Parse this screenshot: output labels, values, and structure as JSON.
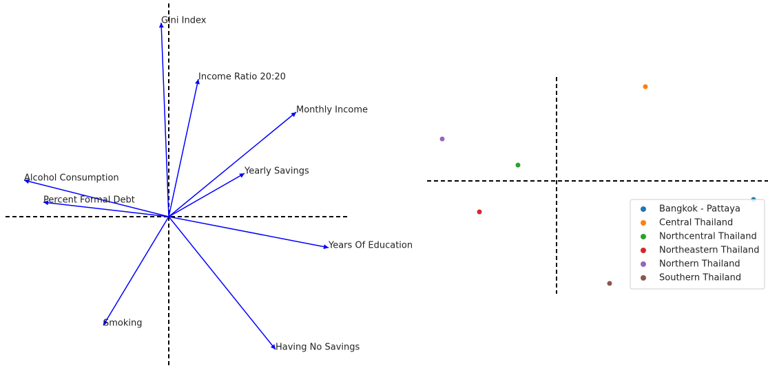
{
  "chart_data": [
    {
      "type": "quiver",
      "color": "#0000ff",
      "xlim": [
        -2.37,
        2.6
      ],
      "ylim": [
        -2.2,
        3.1
      ],
      "vectors": [
        {
          "name": "Gini Index",
          "x": -0.11,
          "y": 2.82
        },
        {
          "name": "Income Ratio 20:20",
          "x": 0.43,
          "y": 2.0
        },
        {
          "name": "Monthly Income",
          "x": 1.85,
          "y": 1.52
        },
        {
          "name": "Yearly Savings",
          "x": 1.1,
          "y": 0.63
        },
        {
          "name": "Alcohol Consumption",
          "x": -2.1,
          "y": 0.53
        },
        {
          "name": "Percent Formal Debt",
          "x": -1.82,
          "y": 0.21
        },
        {
          "name": "Years Of Education",
          "x": 2.32,
          "y": -0.45
        },
        {
          "name": "Smoking",
          "x": -0.95,
          "y": -1.58
        },
        {
          "name": "Having No Savings",
          "x": 1.55,
          "y": -1.93
        }
      ]
    },
    {
      "type": "scatter",
      "xlim": [
        -1.88,
        3.07
      ],
      "ylim": [
        -1.64,
        1.51
      ],
      "legend": "lower right",
      "series": [
        {
          "name": "Bangkok - Pattaya",
          "color": "#1f77b4",
          "x": [
            2.86
          ],
          "values": [
            -0.27
          ]
        },
        {
          "name": "Central Thailand",
          "color": "#ff7f0e",
          "x": [
            1.29
          ],
          "values": [
            1.37
          ]
        },
        {
          "name": "Northcentral Thailand",
          "color": "#2ca02c",
          "x": [
            -0.56
          ],
          "values": [
            0.23
          ]
        },
        {
          "name": "Northeastern Thailand",
          "color": "#d62728",
          "x": [
            -1.12
          ],
          "values": [
            -0.45
          ]
        },
        {
          "name": "Northern Thailand",
          "color": "#9467bd",
          "x": [
            -1.66
          ],
          "values": [
            0.61
          ]
        },
        {
          "name": "Southern Thailand",
          "color": "#8c564b",
          "x": [
            0.77
          ],
          "values": [
            -1.49
          ]
        }
      ]
    }
  ]
}
